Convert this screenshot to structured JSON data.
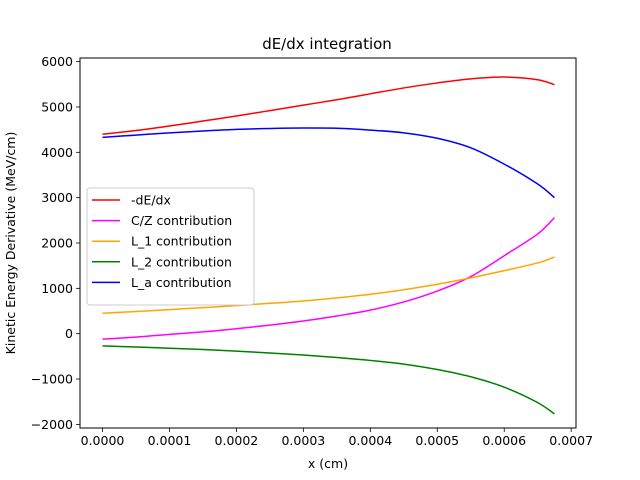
{
  "chart_data": {
    "type": "line",
    "title": "dE/dx integration",
    "xlabel": "x (cm)",
    "ylabel": "Kinetic Energy Derivative (MeV/cm)",
    "xlim": [
      -3.36e-05,
      0.0007072
    ],
    "ylim": [
      -2080,
      6080
    ],
    "xticks": [
      0.0,
      0.0001,
      0.0002,
      0.0003,
      0.0004,
      0.0005,
      0.0006,
      0.0007
    ],
    "xtick_labels": [
      "0.0000",
      "0.0001",
      "0.0002",
      "0.0003",
      "0.0004",
      "0.0005",
      "0.0006",
      "0.0007"
    ],
    "yticks": [
      -2000,
      -1000,
      0,
      1000,
      2000,
      3000,
      4000,
      5000,
      6000
    ],
    "ytick_labels": [
      "−2000",
      "−1000",
      "0",
      "1000",
      "2000",
      "3000",
      "4000",
      "5000",
      "6000"
    ],
    "grid": false,
    "legend_position": "center-left",
    "x": [
      0.0,
      5e-05,
      0.0001,
      0.00015,
      0.0002,
      0.00025,
      0.0003,
      0.00035,
      0.0004,
      0.00045,
      0.0005,
      0.00055,
      0.0006,
      0.00065,
      0.000675
    ],
    "series": [
      {
        "name": "-dE/dx",
        "color": "#ff0000",
        "values": [
          4400,
          4480,
          4580,
          4690,
          4800,
          4920,
          5040,
          5160,
          5290,
          5420,
          5530,
          5620,
          5660,
          5600,
          5490
        ]
      },
      {
        "name": "C/Z contribution",
        "color": "#ff00ff",
        "values": [
          -120,
          -75,
          -15,
          40,
          110,
          190,
          280,
          390,
          520,
          700,
          940,
          1260,
          1720,
          2200,
          2560
        ]
      },
      {
        "name": "L_1  contribution",
        "color": "#ffa500",
        "values": [
          450,
          490,
          530,
          575,
          620,
          670,
          720,
          790,
          870,
          970,
          1090,
          1230,
          1390,
          1560,
          1690
        ]
      },
      {
        "name": "L_2  contribution",
        "color": "#008000",
        "values": [
          -270,
          -295,
          -320,
          -350,
          -385,
          -425,
          -470,
          -525,
          -590,
          -670,
          -790,
          -950,
          -1180,
          -1520,
          -1770
        ]
      },
      {
        "name": "L_a contribution",
        "color": "#0000ff",
        "values": [
          4330,
          4380,
          4430,
          4470,
          4505,
          4525,
          4535,
          4530,
          4490,
          4430,
          4310,
          4100,
          3740,
          3300,
          3000
        ]
      }
    ]
  }
}
